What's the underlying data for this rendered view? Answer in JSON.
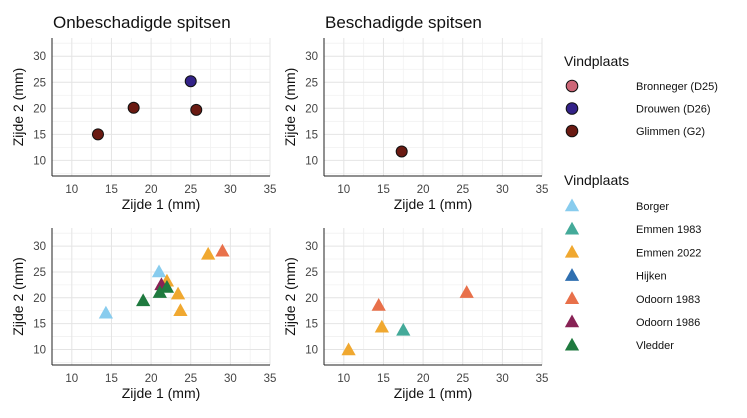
{
  "chart_data": [
    {
      "type": "scatter",
      "title": "Onbeschadigde spitsen",
      "xlabel": "Zijde 1 (mm)",
      "ylabel": "Zijde 2 (mm)",
      "xlim": [
        7.5,
        35
      ],
      "ylim": [
        7,
        33.5
      ],
      "xticks": [
        10,
        15,
        20,
        25,
        30,
        35
      ],
      "yticks": [
        10,
        15,
        20,
        25,
        30
      ],
      "marker": "circle",
      "grid": true,
      "points": [
        {
          "x": 13.3,
          "y": 15.0,
          "group": "Glimmen (G2)"
        },
        {
          "x": 17.8,
          "y": 20.1,
          "group": "Glimmen (G2)"
        },
        {
          "x": 25.7,
          "y": 19.7,
          "group": "Glimmen (G2)"
        },
        {
          "x": 25.0,
          "y": 25.2,
          "group": "Drouwen (D26)"
        }
      ]
    },
    {
      "type": "scatter",
      "title": "Beschadigde spitsen",
      "xlabel": "Zijde 1 (mm)",
      "ylabel": "Zijde 2 (mm)",
      "xlim": [
        7.5,
        35
      ],
      "ylim": [
        7,
        33.5
      ],
      "xticks": [
        10,
        15,
        20,
        25,
        30,
        35
      ],
      "yticks": [
        10,
        15,
        20,
        25,
        30
      ],
      "marker": "circle",
      "grid": true,
      "points": [
        {
          "x": 17.3,
          "y": 11.7,
          "group": "Glimmen (G2)"
        }
      ]
    },
    {
      "type": "scatter",
      "title": "",
      "xlabel": "Zijde 1 (mm)",
      "ylabel": "Zijde 2 (mm)",
      "xlim": [
        7.5,
        35
      ],
      "ylim": [
        7,
        33.5
      ],
      "xticks": [
        10,
        15,
        20,
        25,
        30,
        35
      ],
      "yticks": [
        10,
        15,
        20,
        25,
        30
      ],
      "marker": "triangle",
      "grid": true,
      "points": [
        {
          "x": 14.3,
          "y": 17.0,
          "group": "Borger"
        },
        {
          "x": 21.0,
          "y": 25.0,
          "group": "Borger"
        },
        {
          "x": 27.2,
          "y": 28.4,
          "group": "Emmen 2022"
        },
        {
          "x": 22.0,
          "y": 23.2,
          "group": "Emmen 2022"
        },
        {
          "x": 23.4,
          "y": 20.7,
          "group": "Emmen 2022"
        },
        {
          "x": 23.7,
          "y": 17.5,
          "group": "Emmen 2022"
        },
        {
          "x": 29.0,
          "y": 29.0,
          "group": "Odoorn 1983"
        },
        {
          "x": 21.3,
          "y": 22.5,
          "group": "Odoorn 1986"
        },
        {
          "x": 19.0,
          "y": 19.4,
          "group": "Vledder"
        },
        {
          "x": 21.1,
          "y": 21.0,
          "group": "Vledder"
        },
        {
          "x": 22.0,
          "y": 22.0,
          "group": "Vledder"
        }
      ]
    },
    {
      "type": "scatter",
      "title": "",
      "xlabel": "Zijde 1 (mm)",
      "ylabel": "Zijde 2 (mm)",
      "xlim": [
        7.5,
        35
      ],
      "ylim": [
        7,
        33.5
      ],
      "xticks": [
        10,
        15,
        20,
        25,
        30,
        35
      ],
      "yticks": [
        10,
        15,
        20,
        25,
        30
      ],
      "marker": "triangle",
      "grid": true,
      "points": [
        {
          "x": 10.6,
          "y": 9.9,
          "group": "Emmen 2022"
        },
        {
          "x": 14.8,
          "y": 14.3,
          "group": "Emmen 2022"
        },
        {
          "x": 17.5,
          "y": 13.7,
          "group": "Emmen 1983"
        },
        {
          "x": 14.4,
          "y": 18.5,
          "group": "Odoorn 1983"
        },
        {
          "x": 25.5,
          "y": 21.0,
          "group": "Odoorn 1983"
        }
      ]
    }
  ],
  "legends": [
    {
      "title": "Vindplaats",
      "marker": "circle",
      "entries": [
        {
          "label": "Bronneger (D25)",
          "color": "#cc6677"
        },
        {
          "label": "Drouwen (D26)",
          "color": "#332288"
        },
        {
          "label": "Glimmen (G2)",
          "color": "#6a1a12"
        }
      ]
    },
    {
      "title": "Vindplaats",
      "marker": "triangle",
      "entries": [
        {
          "label": "Borger",
          "color": "#88ccee"
        },
        {
          "label": "Emmen 1983",
          "color": "#44aa99"
        },
        {
          "label": "Emmen 2022",
          "color": "#f0a830"
        },
        {
          "label": "Hijken",
          "color": "#2f6fb0"
        },
        {
          "label": "Odoorn 1983",
          "color": "#e8704a"
        },
        {
          "label": "Odoorn 1986",
          "color": "#882255"
        },
        {
          "label": "Vledder",
          "color": "#1f7a3f"
        }
      ]
    }
  ]
}
